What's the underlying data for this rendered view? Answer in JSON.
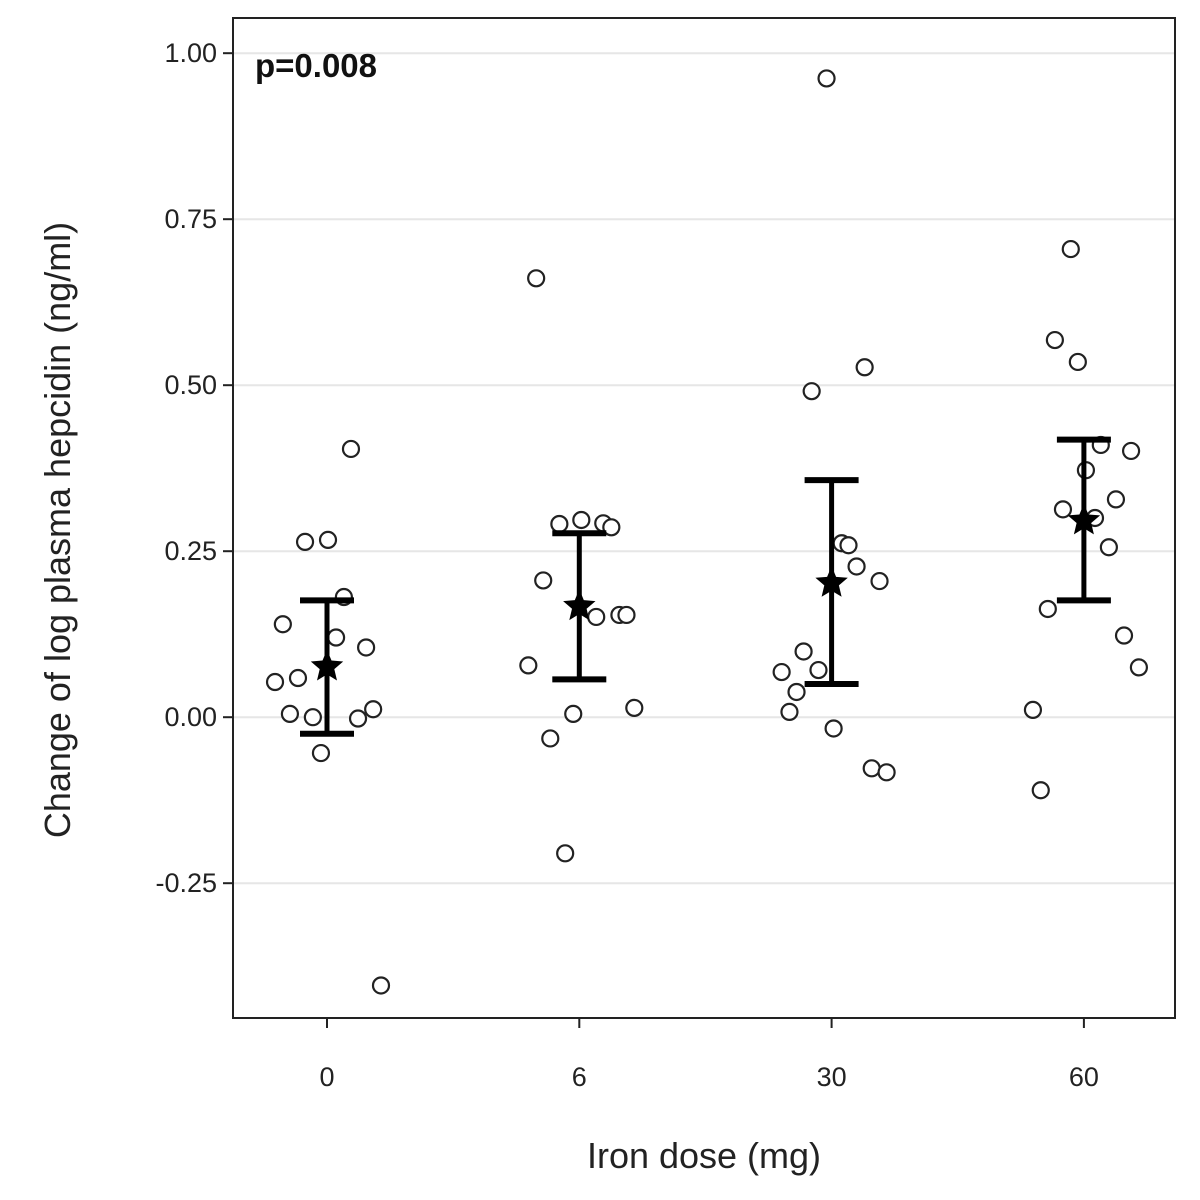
{
  "chart_data": {
    "type": "scatter",
    "title": "",
    "annotation": "p=0.008",
    "xlabel": "Iron dose (mg)",
    "ylabel": "Change of log plasma hepcidin (ng/ml)",
    "categories": [
      "0",
      "6",
      "30",
      "60"
    ],
    "ylim": [
      -0.453,
      1.053
    ],
    "yticks": [
      1.0,
      0.75,
      0.5,
      0.25,
      0.0,
      -0.25
    ],
    "ytick_labels": [
      "1.00",
      "0.75",
      "0.50",
      "0.25",
      "0.00",
      "-0.25"
    ],
    "grid": "horizontal",
    "colors": {
      "points": "#222222",
      "summary": "#000000",
      "grid": "#e6e6e6"
    },
    "groups": [
      {
        "category": "0",
        "mean": 0.076,
        "ci_low": -0.025,
        "ci_high": 0.176,
        "points": [
          {
            "y": 0.404,
            "jitter": 0.095
          },
          {
            "y": 0.264,
            "jitter": -0.087
          },
          {
            "y": 0.267,
            "jitter": 0.004
          },
          {
            "y": 0.181,
            "jitter": 0.067
          },
          {
            "y": 0.14,
            "jitter": -0.175
          },
          {
            "y": 0.12,
            "jitter": 0.036
          },
          {
            "y": 0.105,
            "jitter": 0.155
          },
          {
            "y": 0.053,
            "jitter": -0.206
          },
          {
            "y": 0.059,
            "jitter": -0.115
          },
          {
            "y": 0.005,
            "jitter": -0.147
          },
          {
            "y": 0.0,
            "jitter": -0.056
          },
          {
            "y": -0.002,
            "jitter": 0.123
          },
          {
            "y": 0.012,
            "jitter": 0.183
          },
          {
            "y": -0.054,
            "jitter": -0.024
          },
          {
            "y": -0.404,
            "jitter": 0.214
          }
        ]
      },
      {
        "category": "6",
        "mean": 0.167,
        "ci_low": 0.057,
        "ci_high": 0.277,
        "points": [
          {
            "y": 0.661,
            "jitter": -0.171
          },
          {
            "y": 0.291,
            "jitter": -0.079
          },
          {
            "y": 0.297,
            "jitter": 0.008
          },
          {
            "y": 0.292,
            "jitter": 0.095
          },
          {
            "y": 0.286,
            "jitter": 0.127
          },
          {
            "y": 0.206,
            "jitter": -0.143
          },
          {
            "y": 0.151,
            "jitter": 0.067
          },
          {
            "y": 0.154,
            "jitter": 0.159
          },
          {
            "y": 0.154,
            "jitter": 0.187
          },
          {
            "y": 0.078,
            "jitter": -0.202
          },
          {
            "y": 0.005,
            "jitter": -0.024
          },
          {
            "y": -0.032,
            "jitter": -0.115
          },
          {
            "y": 0.014,
            "jitter": 0.218
          },
          {
            "y": -0.205,
            "jitter": -0.056
          }
        ]
      },
      {
        "category": "30",
        "mean": 0.202,
        "ci_low": 0.05,
        "ci_high": 0.357,
        "points": [
          {
            "y": 0.962,
            "jitter": -0.02
          },
          {
            "y": 0.491,
            "jitter": -0.079
          },
          {
            "y": 0.527,
            "jitter": 0.131
          },
          {
            "y": 0.262,
            "jitter": 0.04
          },
          {
            "y": 0.259,
            "jitter": 0.067
          },
          {
            "y": 0.227,
            "jitter": 0.099
          },
          {
            "y": 0.205,
            "jitter": 0.19
          },
          {
            "y": 0.099,
            "jitter": -0.111
          },
          {
            "y": 0.068,
            "jitter": -0.198
          },
          {
            "y": 0.071,
            "jitter": -0.052
          },
          {
            "y": 0.038,
            "jitter": -0.139
          },
          {
            "y": 0.008,
            "jitter": -0.167
          },
          {
            "y": -0.017,
            "jitter": 0.008
          },
          {
            "y": -0.077,
            "jitter": 0.159
          },
          {
            "y": -0.083,
            "jitter": 0.218
          }
        ]
      },
      {
        "category": "60",
        "mean": 0.296,
        "ci_low": 0.176,
        "ci_high": 0.418,
        "points": [
          {
            "y": 0.705,
            "jitter": -0.052
          },
          {
            "y": 0.568,
            "jitter": -0.115
          },
          {
            "y": 0.535,
            "jitter": -0.024
          },
          {
            "y": 0.41,
            "jitter": 0.067
          },
          {
            "y": 0.401,
            "jitter": 0.187
          },
          {
            "y": 0.372,
            "jitter": 0.008
          },
          {
            "y": 0.328,
            "jitter": 0.127
          },
          {
            "y": 0.313,
            "jitter": -0.083
          },
          {
            "y": 0.3,
            "jitter": 0.044
          },
          {
            "y": 0.256,
            "jitter": 0.099
          },
          {
            "y": 0.163,
            "jitter": -0.143
          },
          {
            "y": 0.123,
            "jitter": 0.159
          },
          {
            "y": 0.075,
            "jitter": 0.218
          },
          {
            "y": 0.011,
            "jitter": -0.202
          },
          {
            "y": -0.11,
            "jitter": -0.171
          }
        ]
      }
    ]
  }
}
